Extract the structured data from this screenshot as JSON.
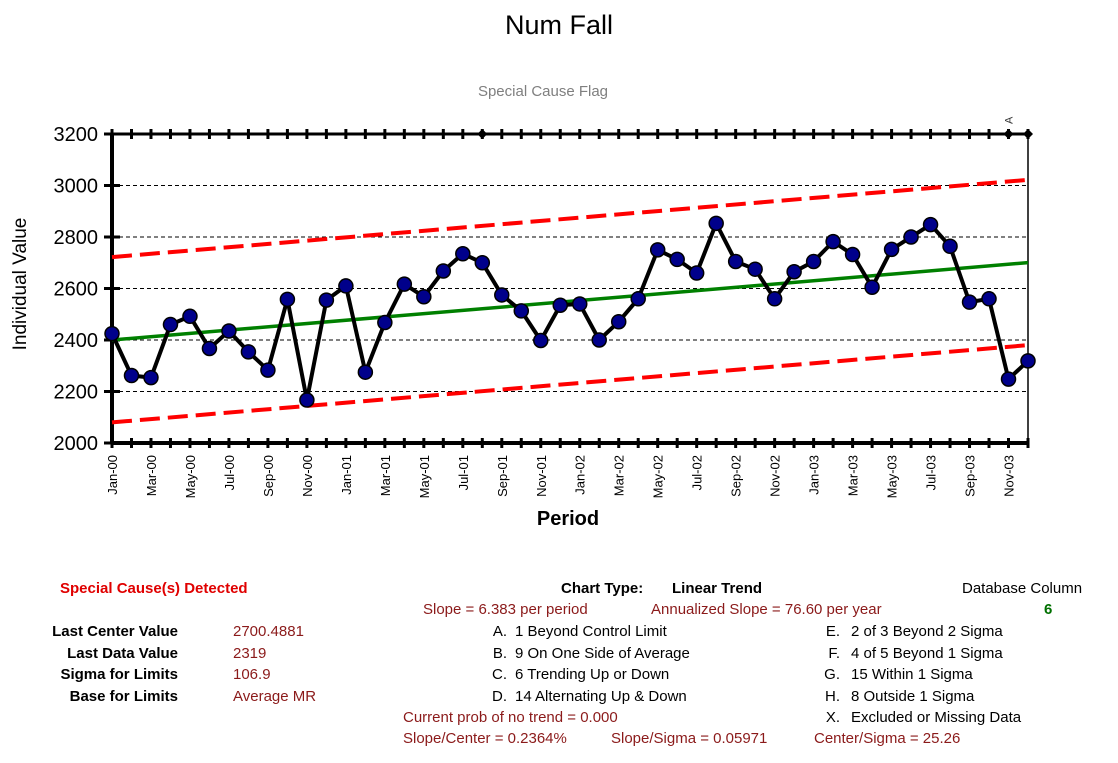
{
  "chart_data": {
    "type": "line",
    "title": "Num Fall",
    "subtitle": "Special Cause Flag",
    "xlabel": "Period",
    "ylabel": "Individual Value",
    "ylim": [
      2000,
      3200
    ],
    "yticks": [
      2000,
      2200,
      2400,
      2600,
      2800,
      3000,
      3200
    ],
    "grid": true,
    "x_labels": [
      "Jan-00",
      "Mar-00",
      "May-00",
      "Jul-00",
      "Sep-00",
      "Nov-00",
      "Jan-01",
      "Mar-01",
      "May-01",
      "Jul-01",
      "Sep-01",
      "Nov-01",
      "Jan-02",
      "Mar-02",
      "May-02",
      "Jul-02",
      "Sep-02",
      "Nov-02",
      "Jan-03",
      "Mar-03",
      "May-03",
      "Jul-03",
      "Sep-03",
      "Nov-03"
    ],
    "series": [
      {
        "values": [
          2425,
          2262,
          2254,
          2460,
          2492,
          2367,
          2435,
          2354,
          2283,
          2558,
          2167,
          2555,
          2610,
          2275,
          2468,
          2617,
          2568,
          2668,
          2735,
          2700,
          2575,
          2513,
          2398,
          2535,
          2540,
          2400,
          2471,
          2560,
          2750,
          2713,
          2660,
          2853,
          2705,
          2675,
          2560,
          2665,
          2705,
          2782,
          2732,
          2605,
          2752,
          2800,
          2848,
          2764,
          2547,
          2560,
          2248,
          2319
        ],
        "color": "#000000",
        "marker_color": "#00008b"
      },
      {
        "start": 2400,
        "end": 2700.4881,
        "color": "#008000"
      },
      {
        "start": 2722,
        "end": 3022,
        "color": "#ff0000",
        "dash": true
      },
      {
        "start": 2080,
        "end": 2380,
        "color": "#ff0000",
        "dash": true
      }
    ],
    "flags": [
      {
        "index": 19,
        "label": ""
      },
      {
        "index": 46,
        "label": "A"
      },
      {
        "index": 47,
        "label": ""
      }
    ]
  },
  "panel": {
    "special_cause": "Special Cause(s) Detected",
    "chart_type_label": "Chart Type:",
    "chart_type_value": "Linear Trend",
    "database_column_label": "Database Column",
    "database_column_value": "6",
    "slope_line": "Slope = 6.383 per period",
    "annualized_slope": "Annualized Slope = 76.60 per year",
    "stats": [
      {
        "label": "Last Center Value",
        "value": "2700.4881"
      },
      {
        "label": "Last Data Value",
        "value": "2319"
      },
      {
        "label": "Sigma for Limits",
        "value": "106.9"
      },
      {
        "label": "Base for Limits",
        "value": "Average MR"
      }
    ],
    "rules_mid": [
      {
        "key": "A.",
        "text": "1 Beyond Control Limit"
      },
      {
        "key": "B.",
        "text": "9 On One Side of Average"
      },
      {
        "key": "C.",
        "text": "6 Trending Up or Down"
      },
      {
        "key": "D.",
        "text": "14 Alternating  Up & Down"
      }
    ],
    "rules_right": [
      {
        "key": "E.",
        "text": "2 of 3 Beyond 2 Sigma"
      },
      {
        "key": "F.",
        "text": "4 of 5 Beyond 1 Sigma"
      },
      {
        "key": "G.",
        "text": "15 Within 1 Sigma"
      },
      {
        "key": "H.",
        "text": "8 Outside 1 Sigma"
      },
      {
        "key": "X.",
        "text": "Excluded or Missing Data"
      }
    ],
    "prob_no_trend": "Current prob of no trend = 0.000",
    "slope_center": "Slope/Center = 0.2364%",
    "slope_sigma": "Slope/Sigma = 0.05971",
    "center_sigma": "Center/Sigma = 25.26"
  }
}
